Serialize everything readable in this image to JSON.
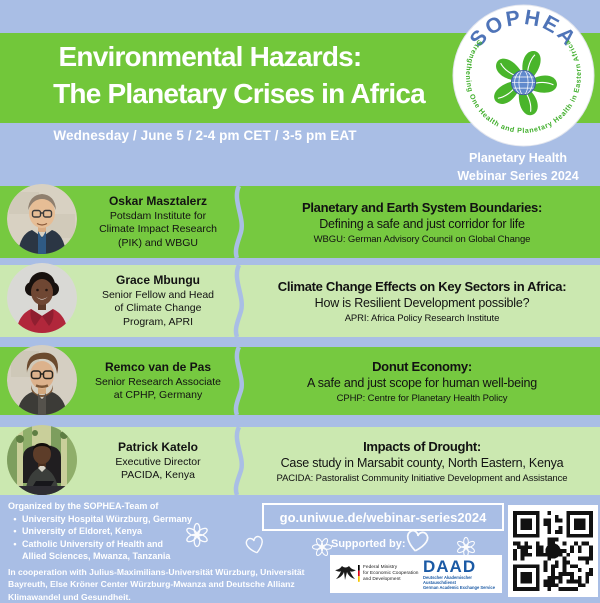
{
  "header": {
    "title_line1": "Environmental Hazards:",
    "title_line2": "The Planetary Crises in Africa",
    "datetime": "Wednesday / June 5 / 2-4 pm CET / 3-5 pm EAT",
    "series_line1": "Planetary Health",
    "series_line2": "Webinar Series 2024"
  },
  "logo": {
    "name": "SOPHEA",
    "tagline": "Strengthening One Health and Planetary Health in Eastern Africa"
  },
  "colors": {
    "background": "#a9bee5",
    "band_green": "#72c73a",
    "row_green": "#76c940",
    "row_light_green": "#cbe8b0",
    "logo_blue": "#4f74b8",
    "daad_blue": "#1b5aa5",
    "text_dark": "#121212",
    "text_white": "#ffffff"
  },
  "speakers": [
    {
      "name": "Oskar Masztalerz",
      "affiliation_lines": [
        "Potsdam Institute for",
        "Climate Impact Research",
        "(PIK) and WBGU"
      ],
      "talk_title": "Planetary and Earth System Boundaries:",
      "talk_subtitle": "Defining a safe and just corridor for life",
      "talk_note": "WBGU: German Advisory Council on Global Change"
    },
    {
      "name": "Grace Mbungu",
      "affiliation_lines": [
        "Senior Fellow and Head",
        "of Climate Change",
        "Program, APRI"
      ],
      "talk_title": "Climate Change Effects on Key Sectors in Africa:",
      "talk_subtitle": "How is Resilient Development possible?",
      "talk_note": "APRI: Africa Policy Research Institute"
    },
    {
      "name": "Remco van de Pas",
      "affiliation_lines": [
        "Senior Research Associate",
        "at CPHP, Germany"
      ],
      "talk_title": "Donut Economy:",
      "talk_subtitle": "A safe and just scope for human well-being",
      "talk_note": "CPHP: Centre for Planetary Health Policy"
    },
    {
      "name": "Patrick Katelo",
      "affiliation_lines": [
        "Executive Director",
        "PACIDA, Kenya"
      ],
      "talk_title": "Impacts of Drought:",
      "talk_subtitle": "Case study in Marsabit county, North Eastern, Kenya",
      "talk_note": "PACIDA: Pastoralist Community Initiative Development and Assistance"
    }
  ],
  "footer": {
    "organized_heading": "Organized by the SOPHEA-Team of",
    "organizers": [
      "University Hospital Würzburg, Germany",
      "University of Eldoret, Kenya",
      "Catholic University of Health and",
      "Allied Sciences, Mwanza, Tanzania"
    ],
    "cooperation": "In cooperation with Julius-Maximilians-Universität Würzburg, Universität Bayreuth, Else Kröner Center Würzburg-Mwanza and Deutsche Allianz Klimawandel und Gesundheit.",
    "link": "go.uniwue.de/webinar-series2024",
    "supported_by_label": "Supported by:",
    "sponsors": {
      "bmz_lines": [
        "Federal Ministry",
        "for Economic Cooperation",
        "and Development"
      ],
      "daad": "DAAD",
      "daad_sub1": "Deutscher Akademischer Austauschdienst",
      "daad_sub2": "German Academic Exchange Service"
    }
  }
}
